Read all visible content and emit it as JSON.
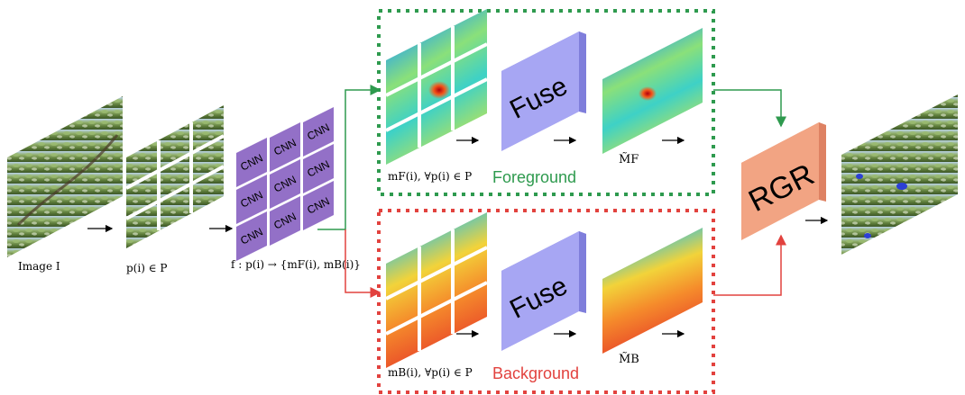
{
  "labels": {
    "image": "Image I",
    "patches": "p(i) ∈ P",
    "cnn_func": "f : p(i) → {mF(i), mB(i)}",
    "fg_maps": "mF(i), ∀p(i) ∈ P",
    "bg_maps": "mB(i), ∀p(i) ∈ P",
    "fg_fused": "M̃F",
    "bg_fused": "M̃B",
    "foreground": "Foreground",
    "background": "Background",
    "fuse": "Fuse",
    "rgr": "RGR",
    "cnn": "CNN"
  },
  "colors": {
    "foreground": "#2e9a4e",
    "background": "#e2423e",
    "cnn_fill": "#9370c7",
    "fuse_fill": "#a7a6f3",
    "rgr_fill": "#f2a483",
    "arrow": "#000000"
  }
}
